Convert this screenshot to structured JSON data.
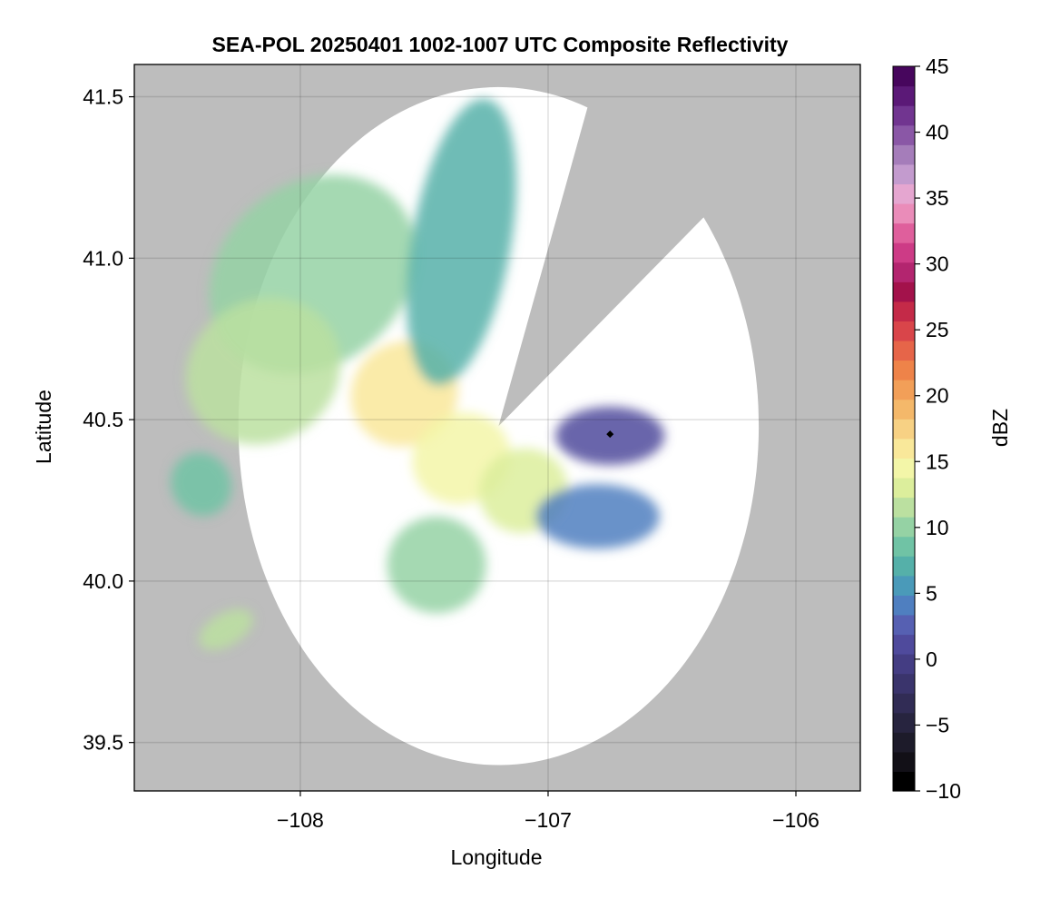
{
  "chart_data": {
    "type": "heatmap",
    "title": "SEA-POL 20250401 1002-1007 UTC Composite Reflectivity",
    "xlabel": "Longitude",
    "ylabel": "Latitude",
    "xlim": [
      -108.67,
      -105.74
    ],
    "ylim": [
      39.35,
      41.6
    ],
    "x_ticks": [
      -108,
      -107,
      -106
    ],
    "x_tick_labels": [
      "−108",
      "−107",
      "−106"
    ],
    "y_ticks": [
      39.5,
      40.0,
      40.5,
      41.0,
      41.5
    ],
    "y_tick_labels": [
      "39.5",
      "40.0",
      "40.5",
      "41.0",
      "41.5"
    ],
    "grid": true,
    "radar_center": {
      "lon": -107.2,
      "lat": 40.48
    },
    "max_range_deg": 1.05,
    "sector_gaps": [
      {
        "azimuth_from_deg": 20,
        "azimuth_to_deg": 52
      }
    ],
    "marker": {
      "lon": -106.75,
      "lat": 40.455,
      "shape": "diamond"
    },
    "background_color": "#bdbdbd",
    "no_echo_color": "#ffffff",
    "colorbar": {
      "label": "dBZ",
      "range": [
        -10,
        45
      ],
      "step": 2.5,
      "ticks": [
        -10,
        -5,
        0,
        5,
        10,
        15,
        20,
        25,
        30,
        35,
        40,
        45
      ],
      "tick_labels": [
        "−10",
        "−5",
        "0",
        "5",
        "10",
        "15",
        "20",
        "25",
        "30",
        "35",
        "40",
        "45"
      ],
      "colors": [
        "#000000",
        "#121017",
        "#1d1b2a",
        "#27243f",
        "#312c55",
        "#3a346c",
        "#443d83",
        "#4f4a9c",
        "#5660b2",
        "#4f7fc0",
        "#4a9ab9",
        "#55b0a9",
        "#70c3a5",
        "#95d2a4",
        "#bbe0a0",
        "#dcee9c",
        "#f3f6a8",
        "#f9e89a",
        "#f7d184",
        "#f4b86a",
        "#f29f58",
        "#ee8349",
        "#e66549",
        "#d9454a",
        "#c42a48",
        "#a3124b",
        "#b3256f",
        "#cd3b86",
        "#df5f9c",
        "#ea8cb9",
        "#e5a6d0",
        "#c39bce",
        "#a57dba",
        "#8a57a6",
        "#713590",
        "#5b1977",
        "#47065d"
      ]
    },
    "echo_regions": [
      {
        "name": "northwest-band",
        "lon": -107.95,
        "lat": 40.95,
        "rx": 0.45,
        "ry": 0.28,
        "rot": -40,
        "dbz": 23
      },
      {
        "name": "west-core",
        "lon": -108.15,
        "lat": 40.65,
        "rx": 0.32,
        "ry": 0.22,
        "rot": -30,
        "dbz": 26
      },
      {
        "name": "central-core",
        "lon": -107.58,
        "lat": 40.58,
        "rx": 0.22,
        "ry": 0.16,
        "rot": -35,
        "dbz": 34
      },
      {
        "name": "north-arm",
        "lon": -107.35,
        "lat": 41.05,
        "rx": 0.2,
        "ry": 0.45,
        "rot": 10,
        "dbz": 19
      },
      {
        "name": "south-core",
        "lon": -107.35,
        "lat": 40.38,
        "rx": 0.2,
        "ry": 0.14,
        "rot": -20,
        "dbz": 31
      },
      {
        "name": "southeast-core",
        "lon": -107.1,
        "lat": 40.28,
        "rx": 0.18,
        "ry": 0.13,
        "rot": -20,
        "dbz": 28
      },
      {
        "name": "south-band",
        "lon": -107.45,
        "lat": 40.05,
        "rx": 0.2,
        "ry": 0.15,
        "rot": 0,
        "dbz": 24
      },
      {
        "name": "southwest-band",
        "lon": -108.4,
        "lat": 40.3,
        "rx": 0.12,
        "ry": 0.1,
        "rot": -30,
        "dbz": 22
      },
      {
        "name": "east-weak",
        "lon": -106.75,
        "lat": 40.45,
        "rx": 0.22,
        "ry": 0.09,
        "rot": 0,
        "dbz": 8
      },
      {
        "name": "east-fringe",
        "lon": -106.8,
        "lat": 40.2,
        "rx": 0.25,
        "ry": 0.1,
        "rot": 0,
        "dbz": 14
      },
      {
        "name": "far-southwest",
        "lon": -108.3,
        "lat": 39.85,
        "rx": 0.12,
        "ry": 0.05,
        "rot": -30,
        "dbz": 26
      }
    ]
  }
}
